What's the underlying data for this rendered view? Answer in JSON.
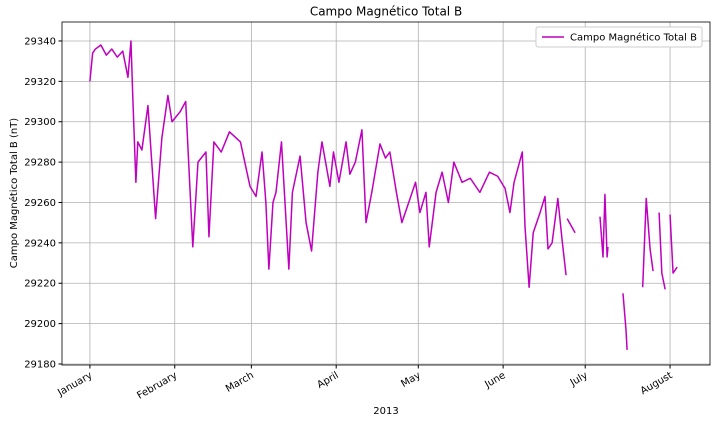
{
  "chart_data": {
    "type": "line",
    "title": "Campo Magnético Total B",
    "x_label": "2013",
    "y_label": "Campo Magnético Total B (nT)",
    "x": [
      0,
      1,
      2,
      4,
      6,
      8,
      10,
      12,
      13.9,
      15,
      15.7,
      16.8,
      17.5,
      19,
      21.2,
      24,
      26.3,
      28.5,
      30,
      33,
      35,
      37.6,
      39.5,
      42.4,
      43.5,
      45.3,
      48,
      51,
      55,
      58.5,
      60.7,
      62.9,
      64.3,
      65.4,
      66.9,
      68,
      70,
      72.7,
      74,
      76.8,
      79,
      81,
      83.3,
      84.8,
      87.7,
      89,
      91,
      93.6,
      95,
      97,
      99.4,
      100.9,
      103,
      106,
      108,
      109.6,
      112,
      114,
      117,
      119,
      120.6,
      122.8,
      124,
      126.5,
      128.7,
      131,
      133,
      136,
      139,
      142.5,
      146,
      149,
      151.7,
      153.5,
      155,
      158,
      159,
      160.5,
      162,
      164.5,
      166.3,
      167.4,
      168.9,
      171,
      172.5,
      174,
      174.2,
      174.4,
      177.3,
      182,
      186.4,
      187.5,
      188.2,
      189,
      189.3,
      192,
      194.8,
      195.9,
      196.3,
      199,
      202,
      203.3,
      204.7,
      205.8,
      207,
      208,
      209,
      210.2,
      211,
      212,
      213.1,
      214.6
    ],
    "series": [
      {
        "name": "Campo Magnético Total B",
        "color": "#bf00bf",
        "values": [
          29320,
          29334,
          29336,
          29338,
          29333,
          29336,
          29332,
          29335,
          29322,
          29340,
          29311,
          29270,
          29290,
          29286,
          29308,
          29252,
          29292,
          29313,
          29300,
          29305,
          29310,
          29238,
          29280,
          29285,
          29243,
          29290,
          29285,
          29295,
          29290,
          29268,
          29263,
          29285,
          29260,
          29227,
          29260,
          29265,
          29290,
          29227,
          29265,
          29283,
          29250,
          29236,
          29275,
          29290,
          29268,
          29285,
          29270,
          29290,
          29274,
          29280,
          29296,
          29250,
          29265,
          29289,
          29282,
          29285,
          29265,
          29250,
          29262,
          29270,
          29255,
          29265,
          29238,
          29265,
          29275,
          29260,
          29280,
          29270,
          29272,
          29265,
          29275,
          29273,
          29267,
          29255,
          29270,
          29285,
          29248,
          29218,
          29245,
          29255,
          29263,
          29237,
          29240,
          29262,
          29242,
          29224,
          null,
          29252,
          29245,
          null,
          29253,
          29233,
          29264,
          29233,
          29238,
          null,
          29215,
          29197,
          29187,
          null,
          29218,
          29262,
          29237,
          29226,
          null,
          29255,
          29225,
          29217,
          null,
          29254,
          29225,
          29228
        ]
      }
    ],
    "xlim": [
      -10.2,
      226.6
    ],
    "ylim": [
      29179.5,
      29349.4
    ],
    "xticks": [
      {
        "value": 0,
        "label": "January"
      },
      {
        "value": 31,
        "label": "February"
      },
      {
        "value": 59,
        "label": "March"
      },
      {
        "value": 90,
        "label": "April"
      },
      {
        "value": 120,
        "label": "May"
      },
      {
        "value": 151,
        "label": "June"
      },
      {
        "value": 181,
        "label": "July"
      },
      {
        "value": 212,
        "label": "August"
      }
    ],
    "yticks": [
      29180,
      29200,
      29220,
      29240,
      29260,
      29280,
      29300,
      29320,
      29340
    ],
    "grid": true,
    "legend": "upper right"
  }
}
